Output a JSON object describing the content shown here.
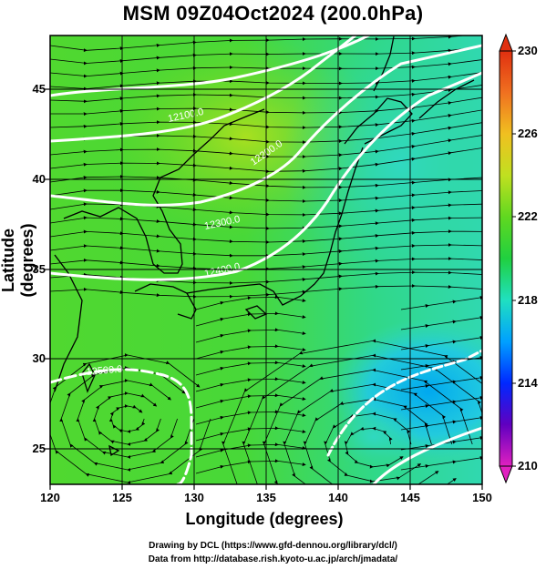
{
  "title": "MSM 09Z04Oct2024 (200.0hPa)",
  "axes": {
    "xlabel": "Longitude (degrees)",
    "ylabel": "Latitude  (degrees)",
    "xticks": [
      "120",
      "125",
      "130",
      "135",
      "140",
      "145",
      "150"
    ],
    "yticks": [
      "45",
      "40",
      "35",
      "30",
      "25"
    ],
    "xlim": [
      120,
      150
    ],
    "ylim": [
      22.5,
      47.5
    ]
  },
  "colorbar": {
    "ticks": [
      "230",
      "226",
      "222",
      "218",
      "214",
      "210"
    ],
    "range": [
      210,
      230
    ],
    "colors": [
      "#e020c0",
      "#6000c0",
      "#0028ff",
      "#00a0ff",
      "#20e0c0",
      "#20d040",
      "#60d820",
      "#c0e020",
      "#f0c020",
      "#f07020",
      "#e03010"
    ]
  },
  "contour_labels": [
    "12100.0",
    "12200.0",
    "12300.0",
    "12400.0",
    "12500.0"
  ],
  "credits": {
    "line1": "Drawing by DCL (https://www.gfd-dennou.org/library/dcl/)",
    "line2": "Data from http://database.rish.kyoto-u.ac.jp/arch/jmadata/"
  },
  "chart_data": {
    "type": "heatmap",
    "title": "MSM 09Z04Oct2024 (200.0hPa)",
    "xlabel": "Longitude (degrees)",
    "ylabel": "Latitude  (degrees)",
    "xlim": [
      120,
      150
    ],
    "ylim": [
      22.5,
      47.5
    ],
    "colorbar_range": [
      210,
      230
    ],
    "grid": true,
    "contours": [
      {
        "label": "12100.0",
        "points": [
          [
            122,
            46.0
          ],
          [
            128,
            46.5
          ],
          [
            134,
            46.8
          ],
          [
            140,
            47.6
          ]
        ]
      },
      {
        "label": "12200.0",
        "points": [
          [
            120,
            42.3
          ],
          [
            126,
            42.5
          ],
          [
            130,
            43.0
          ],
          [
            134,
            43.5
          ],
          [
            138,
            45.2
          ],
          [
            141,
            47.5
          ]
        ]
      },
      {
        "label": "12300.0",
        "points": [
          [
            120,
            38.8
          ],
          [
            126,
            37.9
          ],
          [
            130,
            38.5
          ],
          [
            134,
            40.0
          ],
          [
            137,
            41.5
          ],
          [
            140,
            43.0
          ],
          [
            145,
            46.5
          ],
          [
            150,
            48.0
          ]
        ]
      },
      {
        "label": "12400.0",
        "points": [
          [
            120,
            35.0
          ],
          [
            126,
            34.5
          ],
          [
            131,
            35.0
          ],
          [
            135,
            36.2
          ],
          [
            139,
            38.5
          ],
          [
            142,
            41.0
          ],
          [
            146,
            44.5
          ],
          [
            150,
            46.5
          ]
        ]
      },
      {
        "label": "12500.0",
        "points": [
          [
            120,
            28.5
          ],
          [
            124,
            29.5
          ],
          [
            128,
            29.8
          ],
          [
            130.5,
            28.5
          ],
          [
            130.5,
            25.5
          ],
          [
            129,
            23.0
          ]
        ]
      }
    ],
    "lows": [
      {
        "lon": 142.3,
        "lat": 25.2
      }
    ]
  }
}
